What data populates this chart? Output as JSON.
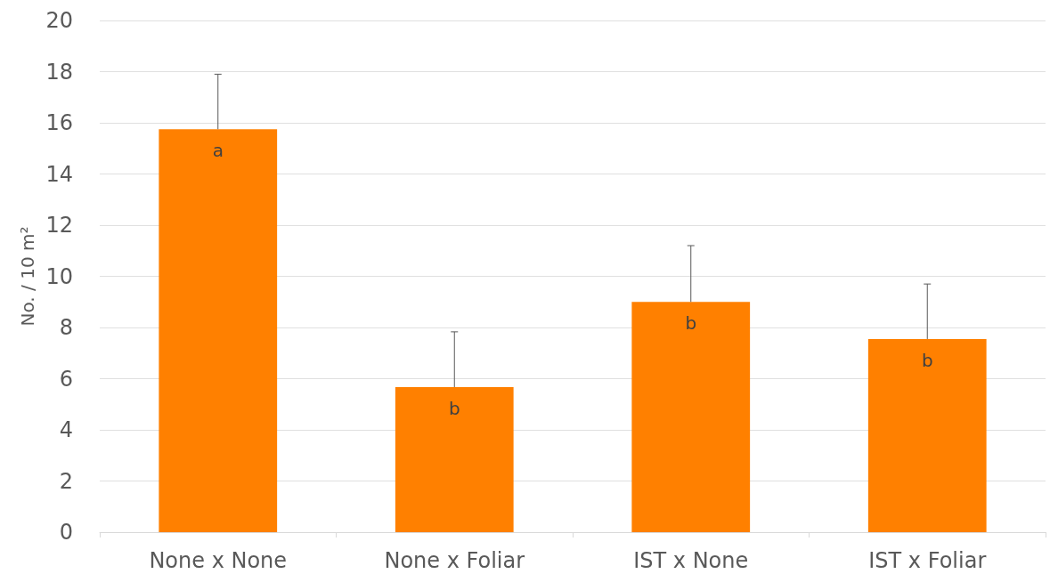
{
  "chart_data": {
    "type": "bar",
    "ylabel": "No. / 10 m²",
    "categories": [
      "None x None",
      "None x Foliar",
      "IST x None",
      "IST x Foliar"
    ],
    "values": [
      15.75,
      5.67,
      9.0,
      7.55
    ],
    "errors": [
      [
        15.75,
        17.9
      ],
      [
        5.67,
        7.83
      ],
      [
        9.0,
        11.2
      ],
      [
        7.55,
        9.7
      ]
    ],
    "color": "#ff8000",
    "ylim": [
      0,
      20
    ],
    "yticks": [
      0,
      2,
      4,
      6,
      8,
      10,
      12,
      14,
      16,
      18,
      20
    ],
    "grid": "y",
    "annotations": [
      {
        "text": "a",
        "x": "None x None",
        "y": 15.75
      },
      {
        "text": "b",
        "x": "None x Foliar",
        "y": 5.67
      },
      {
        "text": "b",
        "x": "IST x None",
        "y": 9.0
      },
      {
        "text": "b",
        "x": "IST x Foliar",
        "y": 7.55
      }
    ]
  }
}
